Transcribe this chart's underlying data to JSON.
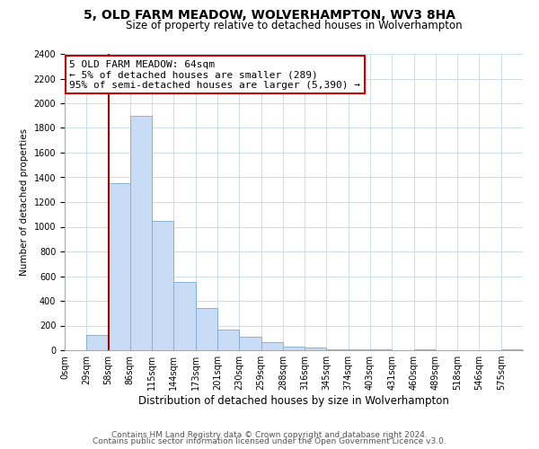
{
  "title": "5, OLD FARM MEADOW, WOLVERHAMPTON, WV3 8HA",
  "subtitle": "Size of property relative to detached houses in Wolverhampton",
  "xlabel": "Distribution of detached houses by size in Wolverhampton",
  "ylabel": "Number of detached properties",
  "bin_labels": [
    "0sqm",
    "29sqm",
    "58sqm",
    "86sqm",
    "115sqm",
    "144sqm",
    "173sqm",
    "201sqm",
    "230sqm",
    "259sqm",
    "288sqm",
    "316sqm",
    "345sqm",
    "374sqm",
    "403sqm",
    "431sqm",
    "460sqm",
    "489sqm",
    "518sqm",
    "546sqm",
    "575sqm"
  ],
  "bar_heights": [
    0,
    125,
    1350,
    1900,
    1050,
    550,
    340,
    165,
    110,
    65,
    30,
    20,
    10,
    5,
    5,
    0,
    5,
    0,
    0,
    0,
    5
  ],
  "bar_color": "#c9dcf5",
  "bar_edge_color": "#7aaad0",
  "vline_x": 2,
  "vline_color": "#990000",
  "annotation_line1": "5 OLD FARM MEADOW: 64sqm",
  "annotation_line2": "← 5% of detached houses are smaller (289)",
  "annotation_line3": "95% of semi-detached houses are larger (5,390) →",
  "annotation_box_color": "#ffffff",
  "annotation_box_edge": "#cc0000",
  "ylim": [
    0,
    2400
  ],
  "yticks": [
    0,
    200,
    400,
    600,
    800,
    1000,
    1200,
    1400,
    1600,
    1800,
    2000,
    2200,
    2400
  ],
  "footer1": "Contains HM Land Registry data © Crown copyright and database right 2024.",
  "footer2": "Contains public sector information licensed under the Open Government Licence v3.0.",
  "title_fontsize": 10,
  "subtitle_fontsize": 8.5,
  "xlabel_fontsize": 8.5,
  "ylabel_fontsize": 7.5,
  "tick_fontsize": 7,
  "annotation_fontsize": 8,
  "footer_fontsize": 6.5,
  "background_color": "#ffffff",
  "grid_color": "#ccdde8"
}
